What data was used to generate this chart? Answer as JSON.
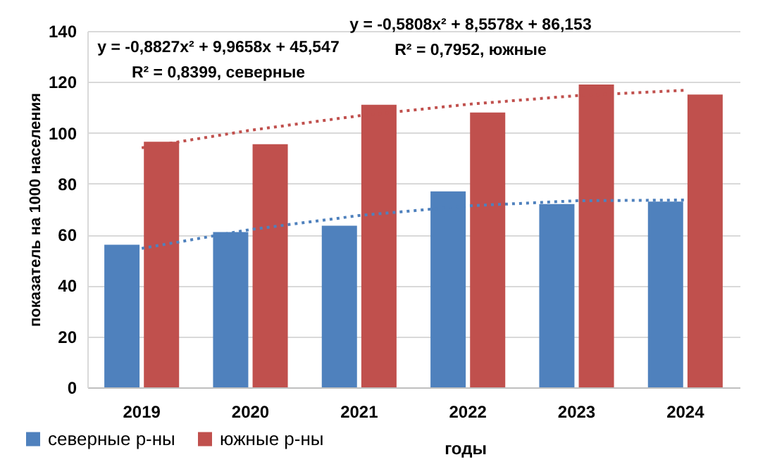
{
  "chart_data": {
    "type": "bar",
    "xlabel": "годы",
    "ylabel": "показатель на  1000 населения",
    "categories": [
      "2019",
      "2020",
      "2021",
      "2022",
      "2023",
      "2024"
    ],
    "series": [
      {
        "name": "северные р-ны",
        "color": "#4f81bd",
        "values": [
          56,
          61,
          63.5,
          77,
          72,
          73
        ]
      },
      {
        "name": "южные р-ны",
        "color": "#c0504d",
        "values": [
          96.5,
          95.5,
          111,
          108,
          119,
          115
        ]
      },
      {
        "type": "line",
        "color": "#4f81bd",
        "line_style": "dotted",
        "values": [
          54.6,
          62,
          67.5,
          71.3,
          73.3,
          73.6
        ]
      },
      {
        "type": "line",
        "color": "#c0504d",
        "line_style": "dotted",
        "values": [
          94.1,
          101,
          106.7,
          111.2,
          114.6,
          116.7
        ]
      }
    ],
    "ylim": [
      0,
      140
    ],
    "yticks": [
      0,
      20,
      40,
      60,
      80,
      100,
      120,
      140
    ],
    "grid": "y",
    "legend": "bottom left",
    "annotations": [
      "y = -0,8827x² + 9,9658x + 45,547\nR² = 0,8399, северные",
      "y = -0,5808x² + 8,5578x + 86,153\nR² = 0,7952, южные"
    ]
  }
}
